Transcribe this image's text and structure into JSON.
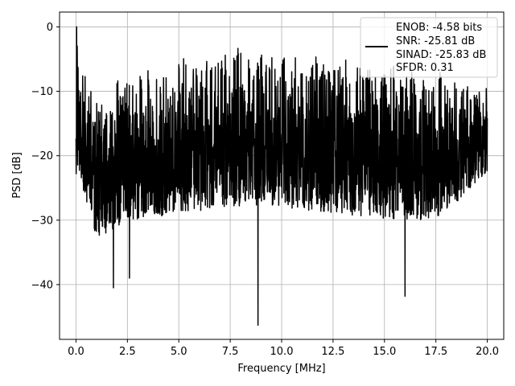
{
  "chart_data": {
    "type": "line",
    "xlabel": "Frequency [MHz]",
    "ylabel": "PSD [dB]",
    "xlim": [
      -0.8,
      20.8
    ],
    "ylim": [
      -48.5,
      2.3
    ],
    "xticks": [
      0.0,
      2.5,
      5.0,
      7.5,
      10.0,
      12.5,
      15.0,
      17.5,
      20.0
    ],
    "xtick_labels": [
      "0.0",
      "2.5",
      "5.0",
      "7.5",
      "10.0",
      "12.5",
      "15.0",
      "17.5",
      "20.0"
    ],
    "yticks": [
      0,
      -10,
      -20,
      -30,
      -40
    ],
    "ytick_labels": [
      "0",
      "−10",
      "−20",
      "−30",
      "−40"
    ],
    "grid": true,
    "legend_position": "top-right",
    "series": [
      {
        "color": "#000000",
        "x_range": [
          0,
          20
        ],
        "legend_lines": [
          "ENOB: -4.58 bits",
          "SNR: -25.81 dB",
          "SINAD: -25.83 dB",
          "SFDR: 0.31"
        ],
        "envelope": [
          {
            "x": 0.0,
            "upper": -16,
            "lower": -24
          },
          {
            "x": 0.05,
            "upper": 0,
            "lower": -22
          },
          {
            "x": 1.0,
            "upper": -11,
            "lower": -33
          },
          {
            "x": 2.5,
            "upper": -7,
            "lower": -30
          },
          {
            "x": 5.0,
            "upper": -5,
            "lower": -29
          },
          {
            "x": 7.5,
            "upper": -3,
            "lower": -28
          },
          {
            "x": 10.0,
            "upper": -4,
            "lower": -28
          },
          {
            "x": 12.5,
            "upper": -4,
            "lower": -29
          },
          {
            "x": 15.0,
            "upper": -5,
            "lower": -30
          },
          {
            "x": 17.5,
            "upper": -6,
            "lower": -30
          },
          {
            "x": 20.0,
            "upper": -9,
            "lower": -23
          }
        ],
        "notable_points": [
          {
            "x": 0.03,
            "y": 0
          },
          {
            "x": 1.82,
            "y": -40.5
          },
          {
            "x": 2.6,
            "y": -39
          },
          {
            "x": 8.85,
            "y": -46.3
          },
          {
            "x": 16.0,
            "y": -41.8
          }
        ]
      }
    ]
  }
}
